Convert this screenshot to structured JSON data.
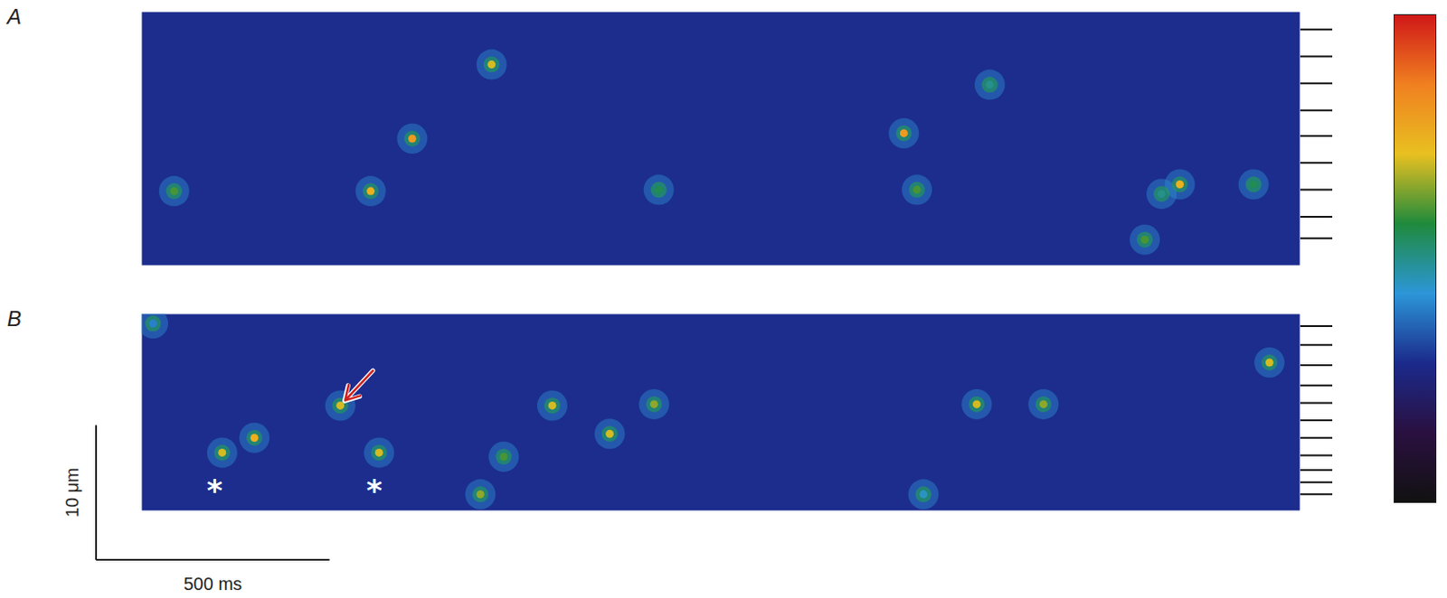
{
  "chart_data": [
    {
      "type": "heatmap",
      "title": "A",
      "xlim": [
        0,
        2480
      ],
      "ylim": [
        0,
        18.8
      ],
      "tick_labels": false,
      "yticks": [
        1.3,
        3.3,
        5.3,
        7.3,
        9.2,
        11.2,
        13.2,
        15.2,
        16.8
      ],
      "background": 0.29,
      "sparks": [
        {
          "t": 69,
          "x": 13.3,
          "peak": 0.6
        },
        {
          "t": 490,
          "x": 13.3,
          "peak": 0.75
        },
        {
          "t": 579,
          "x": 9.4,
          "peak": 0.8
        },
        {
          "t": 749,
          "x": 3.9,
          "peak": 0.7
        },
        {
          "t": 1107,
          "x": 13.2,
          "peak": 0.55
        },
        {
          "t": 1632,
          "x": 9.0,
          "peak": 0.8
        },
        {
          "t": 1660,
          "x": 13.2,
          "peak": 0.6
        },
        {
          "t": 1816,
          "x": 5.4,
          "peak": 0.5
        },
        {
          "t": 2148,
          "x": 16.9,
          "peak": 0.6
        },
        {
          "t": 2184,
          "x": 13.5,
          "peak": 0.5
        },
        {
          "t": 2223,
          "x": 12.8,
          "peak": 0.75
        },
        {
          "t": 2381,
          "x": 12.8,
          "peak": 0.55
        }
      ]
    },
    {
      "type": "heatmap",
      "title": "B",
      "xlim": [
        0,
        2480
      ],
      "ylim": [
        0,
        14.6
      ],
      "tick_labels": false,
      "yticks": [
        0.9,
        2.3,
        3.8,
        5.3,
        6.6,
        7.9,
        9.2,
        10.5,
        11.6,
        12.5,
        13.4
      ],
      "background": 0.29,
      "sparks": [
        {
          "t": 24,
          "x": 0.7,
          "peak": 0.4
        },
        {
          "t": 172,
          "x": 10.3,
          "peak": 0.7
        },
        {
          "t": 241,
          "x": 9.2,
          "peak": 0.75
        },
        {
          "t": 425,
          "x": 6.8,
          "peak": 0.7
        },
        {
          "t": 508,
          "x": 10.3,
          "peak": 0.7
        },
        {
          "t": 725,
          "x": 13.4,
          "peak": 0.65
        },
        {
          "t": 775,
          "x": 10.6,
          "peak": 0.6
        },
        {
          "t": 879,
          "x": 6.8,
          "peak": 0.7
        },
        {
          "t": 1002,
          "x": 8.9,
          "peak": 0.7
        },
        {
          "t": 1097,
          "x": 6.7,
          "peak": 0.65
        },
        {
          "t": 1674,
          "x": 13.4,
          "peak": 0.45
        },
        {
          "t": 1788,
          "x": 6.7,
          "peak": 0.7
        },
        {
          "t": 1931,
          "x": 6.7,
          "peak": 0.65
        },
        {
          "t": 2415,
          "x": 3.6,
          "peak": 0.7
        }
      ],
      "annotations": [
        {
          "text": "*",
          "t": 156,
          "x": 13.2
        },
        {
          "text": "*",
          "t": 498,
          "x": 13.2
        }
      ],
      "arrow": {
        "t": 425,
        "x": 6.8
      }
    }
  ],
  "scale_bars": [
    {
      "value": 10,
      "label": "10 μm"
    },
    {
      "value": 500,
      "label": "500 ms"
    }
  ],
  "color_bar": {
    "range": [
      0,
      1
    ],
    "colors": [
      "#111111",
      "#2a1040",
      "#1b2a8c",
      "#2c96d8",
      "#1f8a3c",
      "#e8c020",
      "#f08020",
      "#d01818"
    ]
  }
}
